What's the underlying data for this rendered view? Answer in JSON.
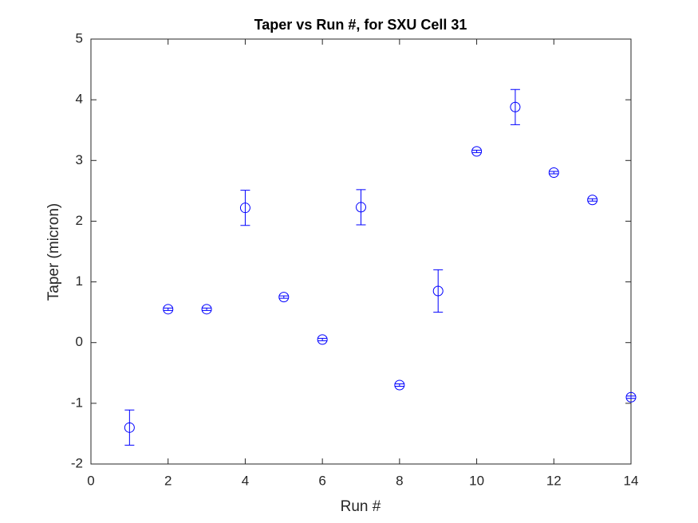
{
  "chart_data": {
    "type": "errorbar",
    "title": "Taper vs Run #, for SXU Cell 31",
    "x_label": "Run #",
    "y_label": "Taper (micron)",
    "x": [
      1,
      2,
      3,
      4,
      5,
      6,
      7,
      8,
      9,
      10,
      11,
      12,
      13,
      14
    ],
    "values": [
      -1.4,
      0.55,
      0.55,
      2.22,
      0.75,
      0.05,
      2.23,
      -0.7,
      0.85,
      3.15,
      3.88,
      2.8,
      2.35,
      -0.9
    ],
    "errors": [
      0.29,
      0.02,
      0.02,
      0.29,
      0.02,
      0.02,
      0.29,
      0.02,
      0.35,
      0.02,
      0.29,
      0.02,
      0.02,
      0.02
    ],
    "color": "#0000ff",
    "xlim": [
      0,
      14
    ],
    "ylim": [
      -2,
      5
    ],
    "xticks": [
      0,
      2,
      4,
      6,
      8,
      10,
      12,
      14
    ],
    "yticks": [
      -2,
      -1,
      0,
      1,
      2,
      3,
      4,
      5
    ]
  }
}
